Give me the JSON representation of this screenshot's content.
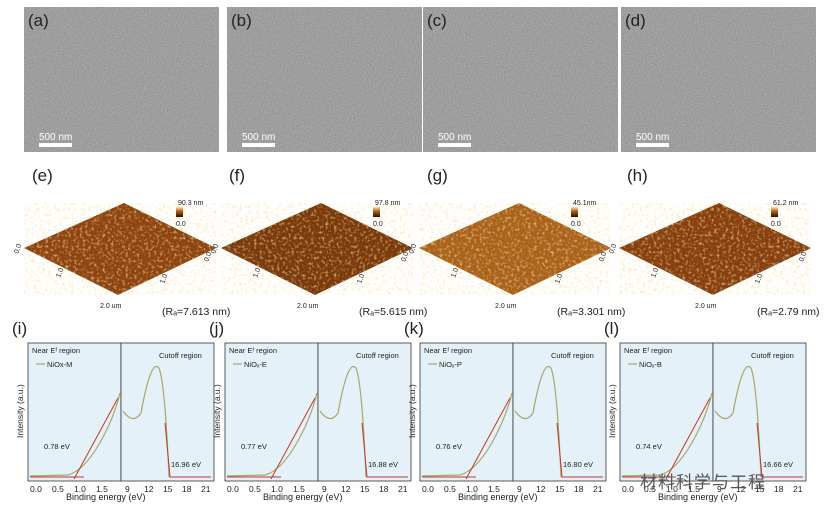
{
  "panel_labels": [
    "(a)",
    "(b)",
    "(c)",
    "(d)",
    "(e)",
    "(f)",
    "(g)",
    "(h)",
    "(i)",
    "(j)",
    "(k)",
    "(l)"
  ],
  "sem": {
    "scale_bar_text": "500 nm",
    "background_color": "#8e8e8e"
  },
  "afm": [
    {
      "height_max": "90.3 nm",
      "height_min": "0.0",
      "ra": "(Rₐ=7.613 nm)",
      "axis": [
        "0.0",
        "1.0",
        "2.0 um"
      ]
    },
    {
      "height_max": "97.8 nm",
      "height_min": "0.0",
      "ra": "(Rₐ=5.615 nm)",
      "axis": [
        "0.0",
        "1.0",
        "2.0 um"
      ]
    },
    {
      "height_max": "45.1nm",
      "height_min": "0.0",
      "ra": "(Rₐ=3.301 nm)",
      "axis": [
        "0.0",
        "1.0",
        "2.0 um"
      ]
    },
    {
      "height_max": "61.2 nm",
      "height_min": "0.0",
      "ra": "(Rₐ=2.79 nm)",
      "axis": [
        "0.0",
        "1.0",
        "2.0 um"
      ]
    }
  ],
  "ups": {
    "ylabel": "Intensity (a.u.)",
    "xlabel": "Binding energy (eV)",
    "near_region_title": "Near Eᶠ region",
    "cutoff_region_title": "Cutoff region",
    "left_ticks": [
      "0.0",
      "0.5",
      "1.0",
      "1.5"
    ],
    "right_ticks": [
      "9",
      "12",
      "15",
      "18",
      "21"
    ],
    "panel_bg": "#e4f1f9",
    "curve_color": "#a9a66a",
    "fit_color": "#c0392b",
    "samples": [
      {
        "legend": "NiOx-M",
        "onset": "0.78 eV",
        "cutoff": "16.96 eV"
      },
      {
        "legend": "NiOₓ-E",
        "onset": "0.77 eV",
        "cutoff": "16.88 eV"
      },
      {
        "legend": "NiOₓ-P",
        "onset": "0.76 eV",
        "cutoff": "16.80 eV"
      },
      {
        "legend": "NiOₓ-B",
        "onset": "0.74 eV",
        "cutoff": "16.66 eV"
      }
    ]
  },
  "watermark": "材料科学与工程"
}
